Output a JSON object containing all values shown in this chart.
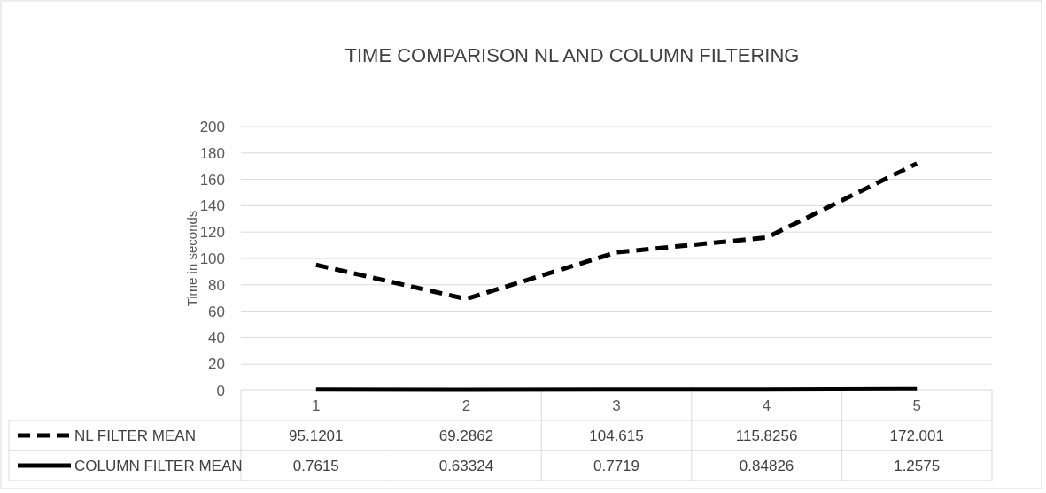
{
  "chart_data": {
    "type": "line",
    "title": "TIME COMPARISON NL AND COLUMN FILTERING",
    "ylabel": "Time in seconds",
    "categories": [
      "1",
      "2",
      "3",
      "4",
      "5"
    ],
    "series": [
      {
        "name": "NL FILTER MEAN",
        "color": "#000000",
        "line_style": "dashed",
        "values": [
          95.1201,
          69.2862,
          104.615,
          115.8256,
          172.001
        ]
      },
      {
        "name": "COLUMN FILTER MEAN",
        "color": "#000000",
        "line_style": "solid",
        "values": [
          0.7615,
          0.63324,
          0.7719,
          0.84826,
          1.2575
        ]
      }
    ],
    "ylim": [
      0,
      200
    ],
    "yticks": [
      0,
      20,
      40,
      60,
      80,
      100,
      120,
      140,
      160,
      180,
      200
    ],
    "grid": "y",
    "data_labels": true,
    "legend": "bottom",
    "marker": "none"
  }
}
